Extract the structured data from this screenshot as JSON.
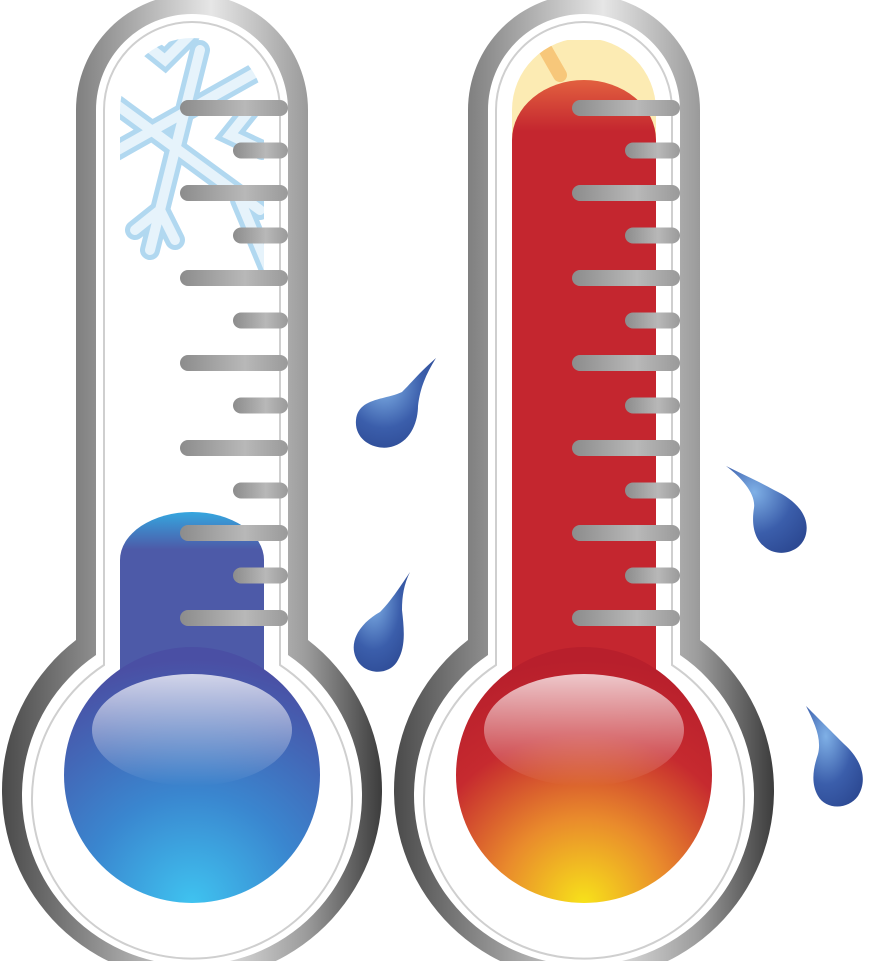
{
  "thermometers": [
    {
      "id": "cold",
      "fill_level": 0.19,
      "icon": "snowflake-icon",
      "colors": {
        "liquid_top": "#35a6df",
        "liquid_mid": "#4d5aa8",
        "bulb_core": "#3a86cf",
        "bulb_edge": "#4a4fa4",
        "bulb_glow": "#3fc3f0",
        "icon": "#a9d4ef"
      }
    },
    {
      "id": "hot",
      "fill_level": 0.97,
      "icon": "sun-icon",
      "colors": {
        "liquid_top": "#e2603f",
        "liquid_mid": "#c4262f",
        "bulb_core": "#c62a2f",
        "bulb_edge": "#b81f2c",
        "bulb_glow": "#f7e21a",
        "icon": "#f7d98e"
      }
    }
  ],
  "frame_colors": {
    "outer_dark": "#3c3c3c",
    "outer_light": "#d8d8d8",
    "tick": "#9a9a9a"
  },
  "droplets": {
    "count": 4,
    "icon": "water-drop-icon",
    "color": "#3b5eab",
    "highlight": "#7fb0e6"
  }
}
